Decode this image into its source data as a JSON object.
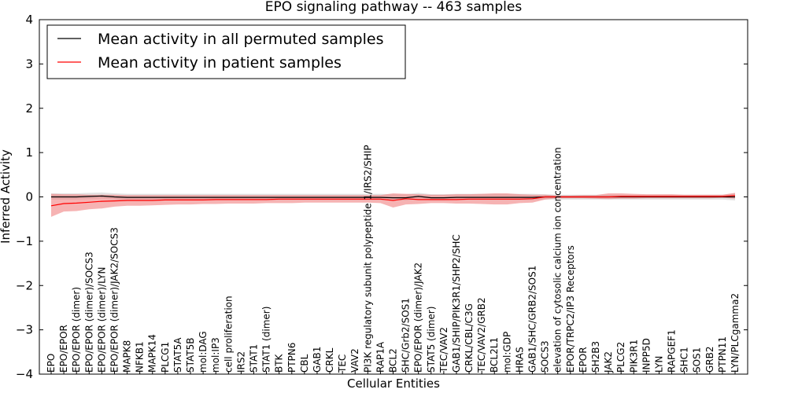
{
  "chart_data": {
    "type": "line",
    "title": "EPO signaling pathway -- 463 samples",
    "xlabel": "Cellular Entities",
    "ylabel": "Inferred Activity",
    "ylim": [
      -4,
      4
    ],
    "yticks": [
      -4,
      -3,
      -2,
      -1,
      0,
      1,
      2,
      3,
      4
    ],
    "ytick_labels": [
      "−4",
      "−3",
      "−2",
      "−1",
      "0",
      "1",
      "2",
      "3",
      "4"
    ],
    "grid": false,
    "legend_position": "top-left",
    "categories": [
      "EPO",
      "EPO/EPOR",
      "EPO/EPOR (dimer)",
      "EPO/EPOR (dimer)/SOCS3",
      "EPO/EPOR (dimer)/LYN",
      "EPO/EPOR (dimer)/JAK2/SOCS3",
      "MAPK8",
      "NFKB1",
      "MAPK14",
      "PLCG1",
      "STAT5A",
      "STAT5B",
      "mol:DAG",
      "mol:IP3",
      "cell proliferation",
      "IRS2",
      "STAT1",
      "STAT1 (dimer)",
      "BTK",
      "PTPN6",
      "CBL",
      "GAB1",
      "CRKL",
      "TEC",
      "VAV2",
      "PI3K regulatory subunit polypeptide 1/IRS2/SHIP",
      "RAP1A",
      "BCL2",
      "SHC/Grb2/SOS1",
      "EPO/EPOR (dimer)/JAK2",
      "STAT5 (dimer)",
      "TEC/VAV2",
      "GAB1/SHIP/PIK3R1/SHP2/SHC",
      "CRKL/CBL/C3G",
      "TEC/VAV2/GRB2",
      "BCL2L1",
      "mol:GDP",
      "HRAS",
      "GAB1/SHC/GRB2/SOS1",
      "SOCS3",
      "elevation of cytosolic calcium ion concentration",
      "EPOR/TRPC2/IP3 Receptors",
      "EPOR",
      "SH2B3",
      "JAK2",
      "PLCG2",
      "PIK3R1",
      "INPP5D",
      "LYN",
      "RAPGEF1",
      "SHC1",
      "SOS1",
      "GRB2",
      "PTPN11",
      "LYN/PLCgamma2"
    ],
    "series": [
      {
        "name": "Mean activity in all permuted samples",
        "color": "#000000",
        "band_color": "#aaaaaa",
        "values": [
          0.0,
          0.0,
          0.0,
          0.01,
          0.02,
          0.0,
          -0.01,
          -0.01,
          -0.01,
          -0.01,
          -0.01,
          -0.01,
          -0.01,
          -0.01,
          -0.01,
          -0.01,
          -0.01,
          -0.01,
          -0.01,
          -0.01,
          -0.01,
          -0.01,
          -0.01,
          -0.01,
          -0.01,
          -0.01,
          -0.01,
          -0.02,
          -0.02,
          0.01,
          -0.02,
          -0.02,
          -0.01,
          -0.01,
          -0.01,
          -0.01,
          -0.01,
          -0.01,
          -0.01,
          0.0,
          0.0,
          0.0,
          0.0,
          0.0,
          0.0,
          0.0,
          0.0,
          0.0,
          0.0,
          0.0,
          0.0,
          0.0,
          0.0,
          0.0,
          0.0
        ],
        "lower": [
          -0.06,
          -0.06,
          -0.06,
          -0.05,
          -0.04,
          -0.06,
          -0.07,
          -0.07,
          -0.07,
          -0.07,
          -0.07,
          -0.07,
          -0.07,
          -0.07,
          -0.07,
          -0.07,
          -0.07,
          -0.07,
          -0.07,
          -0.07,
          -0.07,
          -0.07,
          -0.07,
          -0.07,
          -0.07,
          -0.07,
          -0.07,
          -0.08,
          -0.08,
          -0.05,
          -0.08,
          -0.08,
          -0.07,
          -0.07,
          -0.07,
          -0.07,
          -0.07,
          -0.07,
          -0.07,
          -0.06,
          -0.06,
          -0.06,
          -0.06,
          -0.06,
          -0.06,
          -0.06,
          -0.06,
          -0.06,
          -0.06,
          -0.06,
          -0.06,
          -0.06,
          -0.06,
          -0.06,
          -0.08
        ],
        "upper": [
          0.08,
          0.08,
          0.08,
          0.09,
          0.1,
          0.08,
          0.07,
          0.07,
          0.07,
          0.07,
          0.07,
          0.07,
          0.07,
          0.07,
          0.07,
          0.07,
          0.07,
          0.07,
          0.07,
          0.07,
          0.07,
          0.07,
          0.07,
          0.07,
          0.07,
          0.07,
          0.07,
          0.06,
          0.06,
          0.09,
          0.06,
          0.06,
          0.07,
          0.07,
          0.07,
          0.07,
          0.07,
          0.07,
          0.07,
          0.06,
          0.05,
          0.05,
          0.05,
          0.05,
          0.05,
          0.05,
          0.05,
          0.05,
          0.05,
          0.05,
          0.05,
          0.05,
          0.05,
          0.05,
          0.08
        ]
      },
      {
        "name": "Mean activity in patient samples",
        "color": "#ff0000",
        "band_color": "#f08080",
        "values": [
          -0.2,
          -0.15,
          -0.14,
          -0.12,
          -0.1,
          -0.09,
          -0.08,
          -0.08,
          -0.08,
          -0.07,
          -0.07,
          -0.07,
          -0.07,
          -0.06,
          -0.06,
          -0.06,
          -0.06,
          -0.06,
          -0.05,
          -0.05,
          -0.05,
          -0.05,
          -0.05,
          -0.05,
          -0.05,
          -0.05,
          -0.05,
          -0.08,
          -0.04,
          -0.06,
          -0.06,
          -0.06,
          -0.06,
          -0.05,
          -0.05,
          -0.05,
          -0.05,
          -0.05,
          -0.04,
          0.0,
          0.0,
          0.0,
          0.0,
          0.0,
          0.0,
          0.01,
          0.01,
          0.01,
          0.01,
          0.01,
          0.01,
          0.01,
          0.01,
          0.01,
          0.03
        ],
        "lower": [
          -0.45,
          -0.33,
          -0.32,
          -0.28,
          -0.26,
          -0.22,
          -0.2,
          -0.2,
          -0.19,
          -0.18,
          -0.17,
          -0.17,
          -0.16,
          -0.16,
          -0.15,
          -0.15,
          -0.15,
          -0.14,
          -0.14,
          -0.14,
          -0.13,
          -0.13,
          -0.13,
          -0.13,
          -0.13,
          -0.13,
          -0.14,
          -0.24,
          -0.17,
          -0.16,
          -0.14,
          -0.14,
          -0.15,
          -0.15,
          -0.16,
          -0.17,
          -0.17,
          -0.14,
          -0.13,
          -0.06,
          -0.03,
          -0.03,
          -0.03,
          -0.04,
          -0.05,
          -0.04,
          -0.04,
          -0.03,
          -0.03,
          -0.03,
          -0.03,
          -0.03,
          -0.03,
          -0.02,
          -0.04
        ],
        "upper": [
          0.07,
          0.06,
          0.06,
          0.05,
          0.05,
          0.05,
          0.04,
          0.04,
          0.04,
          0.04,
          0.04,
          0.04,
          0.04,
          0.04,
          0.04,
          0.04,
          0.04,
          0.04,
          0.04,
          0.04,
          0.04,
          0.04,
          0.04,
          0.04,
          0.04,
          0.04,
          0.04,
          0.08,
          0.07,
          0.06,
          0.05,
          0.05,
          0.06,
          0.06,
          0.07,
          0.08,
          0.08,
          0.06,
          0.05,
          0.05,
          0.03,
          0.03,
          0.04,
          0.04,
          0.08,
          0.08,
          0.07,
          0.06,
          0.06,
          0.06,
          0.05,
          0.05,
          0.05,
          0.05,
          0.09
        ]
      }
    ]
  }
}
